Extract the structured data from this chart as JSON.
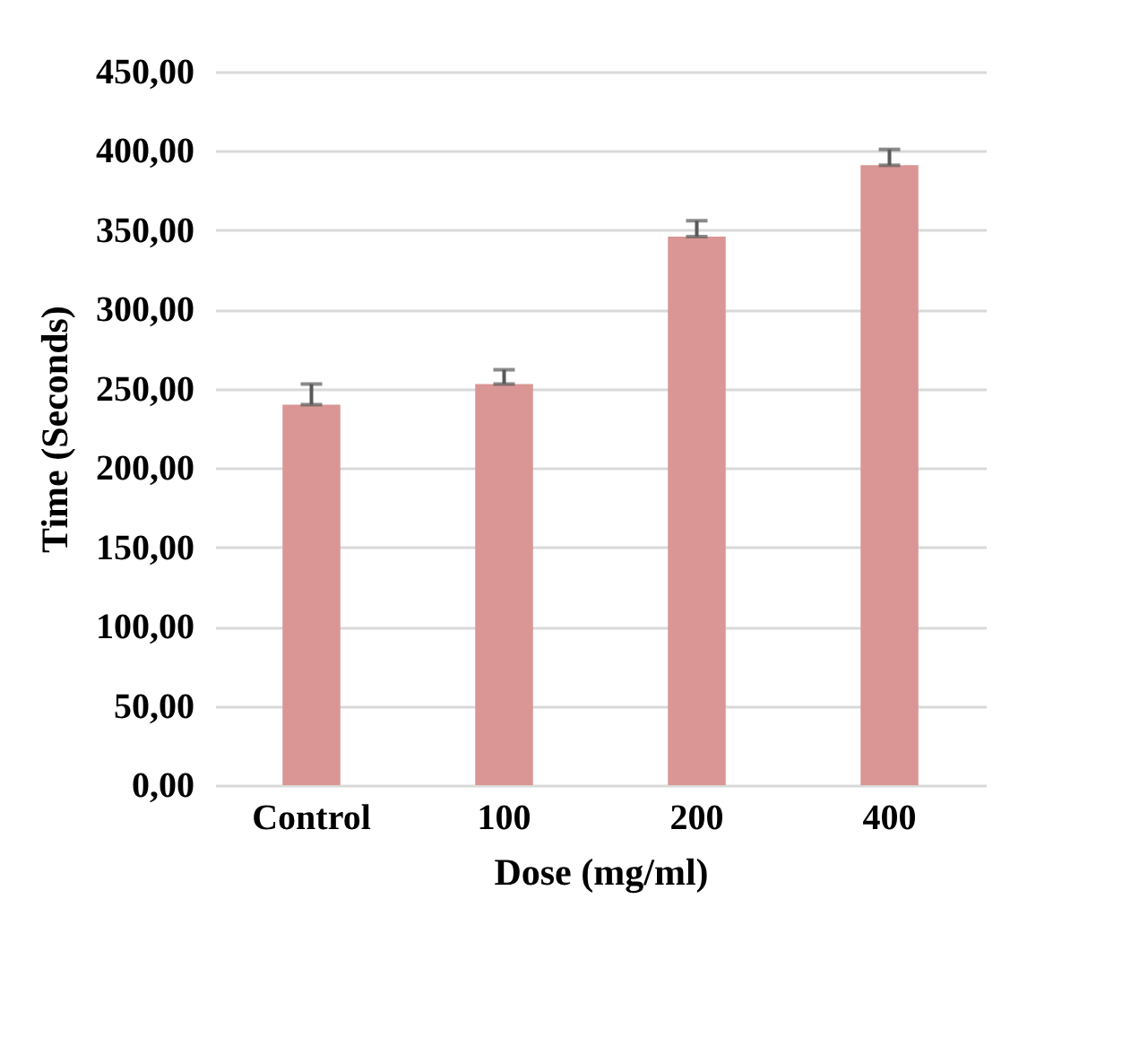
{
  "chart_data": {
    "type": "bar",
    "xlabel": "Dose (mg/ml)",
    "ylabel": "Time (Seconds)",
    "categories": [
      "Control",
      "100",
      "200",
      "400"
    ],
    "values": [
      240,
      253,
      346,
      391
    ],
    "errors": [
      [
        240,
        253
      ],
      [
        253,
        262
      ],
      [
        346,
        356
      ],
      [
        391,
        401
      ]
    ],
    "color": "#d99694",
    "ylim": [
      0,
      450
    ],
    "yticks": [
      {
        "value": 0,
        "label": "0,00"
      },
      {
        "value": 50,
        "label": "50,00"
      },
      {
        "value": 100,
        "label": "100,00"
      },
      {
        "value": 150,
        "label": "150,00"
      },
      {
        "value": 200,
        "label": "200,00"
      },
      {
        "value": 250,
        "label": "250,00"
      },
      {
        "value": 300,
        "label": "300,00"
      },
      {
        "value": 350,
        "label": "350,00"
      },
      {
        "value": 400,
        "label": "400,00"
      },
      {
        "value": 450,
        "label": "450,00"
      }
    ],
    "grid": "y"
  }
}
